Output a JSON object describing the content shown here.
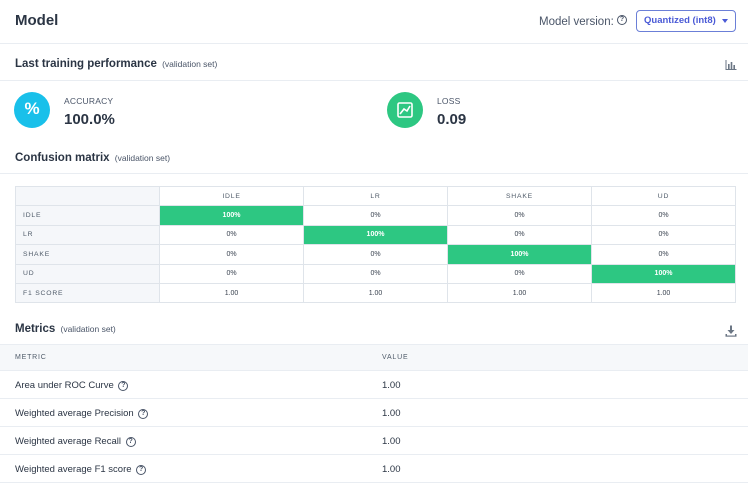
{
  "header": {
    "title": "Model",
    "model_version_label": "Model version:",
    "model_version_value": "Quantized (int8)"
  },
  "performance": {
    "title": "Last training performance",
    "subtitle": "(validation set)",
    "accuracy": {
      "label": "ACCURACY",
      "value": "100.0%",
      "icon_glyph": "%"
    },
    "loss": {
      "label": "LOSS",
      "value": "0.09"
    }
  },
  "confusion": {
    "title": "Confusion matrix",
    "subtitle": "(validation set)",
    "columns": [
      "IDLE",
      "LR",
      "SHAKE",
      "UD"
    ],
    "rows": [
      {
        "label": "IDLE",
        "cells": [
          "100%",
          "0%",
          "0%",
          "0%"
        ]
      },
      {
        "label": "LR",
        "cells": [
          "0%",
          "100%",
          "0%",
          "0%"
        ]
      },
      {
        "label": "SHAKE",
        "cells": [
          "0%",
          "0%",
          "100%",
          "0%"
        ]
      },
      {
        "label": "UD",
        "cells": [
          "0%",
          "0%",
          "0%",
          "100%"
        ]
      }
    ],
    "f1_label": "F1 SCORE",
    "f1": [
      "1.00",
      "1.00",
      "1.00",
      "1.00"
    ]
  },
  "metrics": {
    "title": "Metrics",
    "subtitle": "(validation set)",
    "col_metric": "METRIC",
    "col_value": "VALUE",
    "rows": [
      {
        "name": "Area under ROC Curve",
        "value": "1.00"
      },
      {
        "name": "Weighted average Precision",
        "value": "1.00"
      },
      {
        "name": "Weighted average Recall",
        "value": "1.00"
      },
      {
        "name": "Weighted average F1 score",
        "value": "1.00"
      }
    ]
  },
  "colors": {
    "accent": "#4a5ad6",
    "accuracy_circle": "#19c0ea",
    "loss_circle": "#2dc782",
    "highlight_cell": "#2dc782"
  },
  "icons": {
    "help": "question-circle-icon",
    "chart": "bar-chart-icon",
    "download": "download-icon",
    "loss": "trend-chart-icon"
  }
}
